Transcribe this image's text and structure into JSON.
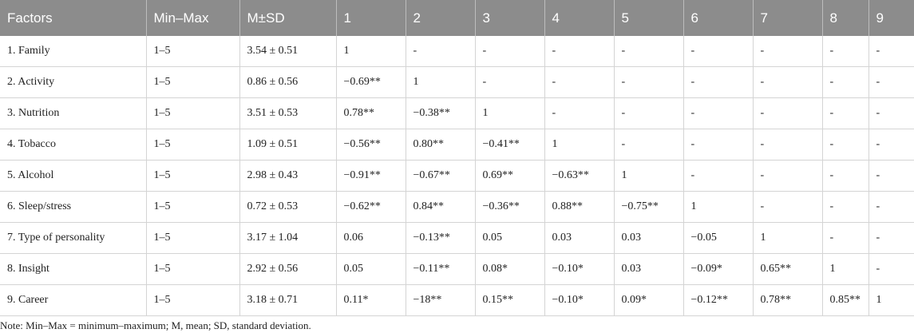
{
  "table": {
    "header": [
      "Factors",
      "Min–Max",
      "M±SD",
      "1",
      "2",
      "3",
      "4",
      "5",
      "6",
      "7",
      "8",
      "9"
    ],
    "rows": [
      [
        "1. Family",
        "1–5",
        "3.54 ± 0.51",
        "1",
        "-",
        "-",
        "-",
        "-",
        "-",
        "-",
        "-",
        "-"
      ],
      [
        "2. Activity",
        "1–5",
        "0.86 ± 0.56",
        "−0.69**",
        "1",
        "-",
        "-",
        "-",
        "-",
        "-",
        "-",
        "-"
      ],
      [
        "3. Nutrition",
        "1–5",
        "3.51 ± 0.53",
        "0.78**",
        "−0.38**",
        "1",
        "-",
        "-",
        "-",
        "-",
        "-",
        "-"
      ],
      [
        "4. Tobacco",
        "1–5",
        "1.09 ± 0.51",
        "−0.56**",
        "0.80**",
        "−0.41**",
        "1",
        "-",
        "-",
        "-",
        "-",
        "-"
      ],
      [
        "5. Alcohol",
        "1–5",
        "2.98 ± 0.43",
        "−0.91**",
        "−0.67**",
        "0.69**",
        "−0.63**",
        "1",
        "-",
        "-",
        "-",
        "-"
      ],
      [
        "6. Sleep/stress",
        "1–5",
        "0.72 ± 0.53",
        "−0.62**",
        "0.84**",
        "−0.36**",
        "0.88**",
        "−0.75**",
        "1",
        "-",
        "-",
        "-"
      ],
      [
        "7. Type of personality",
        "1–5",
        "3.17 ± 1.04",
        "0.06",
        "−0.13**",
        "0.05",
        "0.03",
        "0.03",
        "−0.05",
        "1",
        "-",
        "-"
      ],
      [
        "8. Insight",
        "1–5",
        "2.92 ± 0.56",
        "0.05",
        "−0.11**",
        "0.08*",
        "−0.10*",
        "0.03",
        "−0.09*",
        "0.65**",
        "1",
        "-"
      ],
      [
        "9. Career",
        "1–5",
        "3.18 ± 0.71",
        "0.11*",
        "−18**",
        "0.15**",
        "−0.10*",
        "0.09*",
        "−0.12**",
        "0.78**",
        "0.85**",
        "1"
      ]
    ],
    "note": "Note: Min–Max = minimum–maximum; M, mean; SD, standard deviation."
  }
}
